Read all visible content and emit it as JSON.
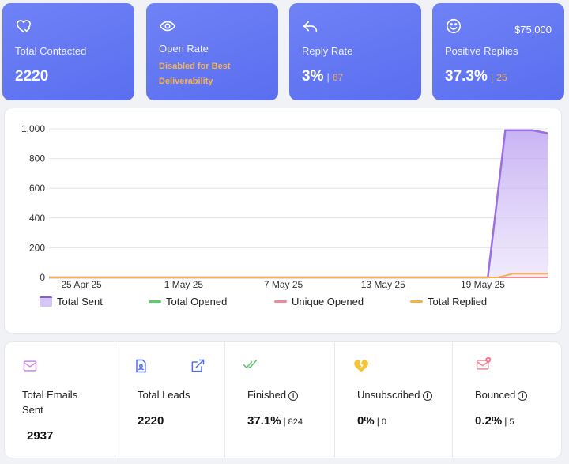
{
  "cards": {
    "total_contacted": {
      "label": "Total Contacted",
      "value": "2220"
    },
    "open_rate": {
      "label": "Open Rate",
      "note_line1": "Disabled for Best",
      "note_line2": "Deliverability"
    },
    "reply_rate": {
      "label": "Reply Rate",
      "value": "3%",
      "sep": "|",
      "count": "67"
    },
    "positive_replies": {
      "label": "Positive Replies",
      "value": "37.3%",
      "sep": "|",
      "count": "25",
      "amount": "$75,000"
    }
  },
  "chart_data": {
    "type": "area",
    "y_ticks": [
      "1,000",
      "800",
      "600",
      "400",
      "200",
      "0"
    ],
    "ylim": [
      0,
      1000
    ],
    "x_ticks": [
      "25 Apr 25",
      "1 May 25",
      "7 May 25",
      "13 May 25",
      "19 May 25"
    ],
    "series": [
      {
        "name": "Total Sent",
        "color": "#9a6fe0",
        "points": [
          [
            0,
            0
          ],
          [
            0.88,
            0
          ],
          [
            0.915,
            990
          ],
          [
            0.97,
            990
          ],
          [
            1.0,
            970
          ]
        ]
      },
      {
        "name": "Total Opened",
        "color": "#5ccf6a",
        "points": [
          [
            0,
            0
          ],
          [
            1,
            0
          ]
        ]
      },
      {
        "name": "Unique Opened",
        "color": "#f08a9a",
        "points": [
          [
            0,
            0
          ],
          [
            1,
            0
          ]
        ]
      },
      {
        "name": "Total Replied",
        "color": "#f3b24a",
        "points": [
          [
            0,
            0
          ],
          [
            0.9,
            0
          ],
          [
            0.93,
            25
          ],
          [
            1,
            25
          ]
        ]
      }
    ]
  },
  "stats": {
    "emails_sent": {
      "label1": "Total Emails",
      "label2": "Sent",
      "value": "2937"
    },
    "leads": {
      "label": "Total Leads",
      "value": "2220"
    },
    "finished": {
      "label": "Finished",
      "value": "37.1%",
      "sep": "|",
      "count": "824"
    },
    "unsubscribed": {
      "label": "Unsubscribed",
      "value": "0%",
      "sep": "|",
      "count": "0"
    },
    "bounced": {
      "label": "Bounced",
      "value": "0.2%",
      "sep": "|",
      "count": "5"
    }
  },
  "icons": {
    "heart": "heart-check-icon",
    "eye": "eye-icon",
    "reply": "reply-icon",
    "smile": "smile-icon",
    "mail": "mail-icon",
    "contact": "contact-card-icon",
    "external": "external-link-icon",
    "double_check": "double-check-icon",
    "broken_heart": "broken-heart-icon",
    "bounce_mail": "mail-bounce-icon"
  },
  "colors": {
    "card_bg": "#5f73f2",
    "accent_orange": "#f5b450"
  }
}
